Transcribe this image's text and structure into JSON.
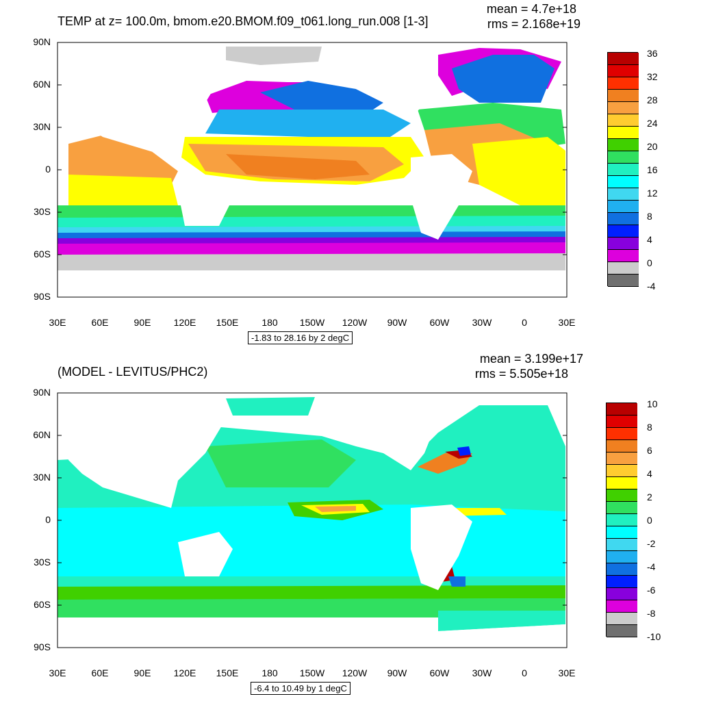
{
  "panels": [
    {
      "title": "TEMP at z= 100.0m, bmom.e20.BMOM.f09_t061.long_run.008 [1-3]",
      "mean": "mean = 4.7e+18",
      "rms": "rms = 2.168e+19",
      "range_text": "-1.83 to 28.16 by 2 degC",
      "lat_labels": [
        "90N",
        "60N",
        "30N",
        "0",
        "30S",
        "60S",
        "90S"
      ],
      "lon_labels": [
        "30E",
        "60E",
        "90E",
        "120E",
        "150E",
        "180",
        "150W",
        "120W",
        "90W",
        "60W",
        "30W",
        "0",
        "30E"
      ],
      "colorbar": {
        "labels": [
          "36",
          "32",
          "28",
          "24",
          "20",
          "16",
          "12",
          "8",
          "4",
          "0",
          "-4"
        ],
        "colors": [
          "#b80000",
          "#e00000",
          "#ff3000",
          "#f08020",
          "#f8a040",
          "#ffcc30",
          "#ffff00",
          "#40d000",
          "#30e060",
          "#20f0c0",
          "#00ffff",
          "#40d8f0",
          "#20b0f0",
          "#1070e0",
          "#0020ff",
          "#8800dd",
          "#dd00dd",
          "#cccccc",
          "#707070"
        ]
      }
    },
    {
      "title": "(MODEL - LEVITUS/PHC2)",
      "mean": "mean = 3.199e+17",
      "rms": "rms = 5.505e+18",
      "range_text": "-6.4 to 10.49 by 1 degC",
      "lat_labels": [
        "90N",
        "60N",
        "30N",
        "0",
        "30S",
        "60S",
        "90S"
      ],
      "lon_labels": [
        "30E",
        "60E",
        "90E",
        "120E",
        "150E",
        "180",
        "150W",
        "120W",
        "90W",
        "60W",
        "30W",
        "0",
        "30E"
      ],
      "colorbar": {
        "labels": [
          "10",
          "8",
          "6",
          "4",
          "2",
          "0",
          "-2",
          "-4",
          "-6",
          "-8",
          "-10"
        ],
        "colors": [
          "#b80000",
          "#e00000",
          "#ff3000",
          "#f08020",
          "#f8a040",
          "#ffcc30",
          "#ffff00",
          "#40d000",
          "#30e060",
          "#20f0c0",
          "#00ffff",
          "#40d8f0",
          "#20b0f0",
          "#1070e0",
          "#0020ff",
          "#8800dd",
          "#dd00dd",
          "#cccccc",
          "#707070"
        ]
      }
    }
  ]
}
